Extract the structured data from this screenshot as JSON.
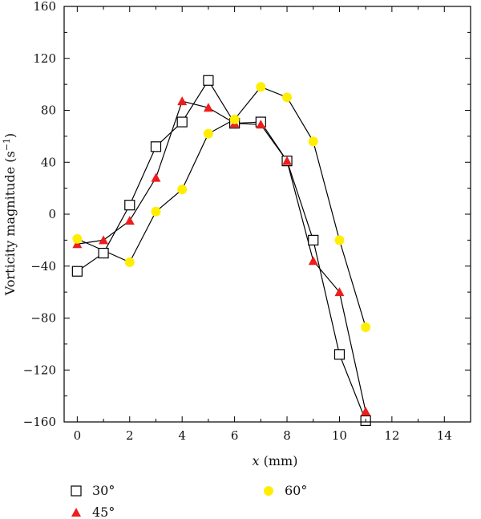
{
  "chart_data": {
    "type": "line",
    "xlabel_var": "x",
    "xlabel_unit": " (mm)",
    "ylabel": "Vorticity magnitude (s",
    "ylabel_sup": "−1",
    "ylabel_close": ")",
    "xlim": [
      -0.5,
      15
    ],
    "ylim": [
      -160,
      160
    ],
    "xticks": [
      0,
      2,
      4,
      6,
      8,
      10,
      12,
      14
    ],
    "yticks": [
      -160,
      -120,
      -80,
      -40,
      0,
      40,
      80,
      120,
      160
    ],
    "grid": false,
    "legend_position": "below plot",
    "series": [
      {
        "name": "30°",
        "marker": "open-square",
        "color": "#000000",
        "x": [
          0,
          1,
          2,
          3,
          4,
          5,
          6,
          7,
          8,
          9,
          10,
          11
        ],
        "y": [
          -44,
          -30,
          7,
          52,
          71,
          103,
          70,
          71,
          41,
          -20,
          -108,
          -159
        ]
      },
      {
        "name": "45°",
        "marker": "filled-triangle",
        "color": "#ee1c1c",
        "x": [
          0,
          1,
          2,
          3,
          4,
          5,
          6,
          7,
          8,
          9,
          10,
          11
        ],
        "y": [
          -23,
          -20,
          -5,
          28,
          87,
          82,
          70,
          69,
          41,
          -36,
          -60,
          -152
        ]
      },
      {
        "name": "60°",
        "marker": "filled-circle",
        "color": "#ffee00",
        "x": [
          0,
          2,
          3,
          4,
          5,
          6,
          7,
          8,
          9,
          10,
          11
        ],
        "y": [
          -19,
          -37,
          2,
          19,
          62,
          73,
          98,
          90,
          56,
          -20,
          -87
        ]
      }
    ]
  }
}
